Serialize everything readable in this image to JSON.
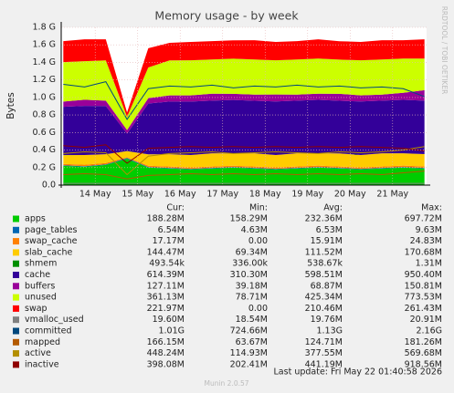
{
  "chart_data": {
    "type": "area",
    "title": "Memory usage - by week",
    "y_label": "Bytes",
    "side_text": "RRDTOOL / TOBI OETIKER",
    "footer": "Last update: Fri May 22 01:40:58 2026",
    "version": "Munin 2.0.57",
    "xlim": [
      13.2,
      21.8
    ],
    "xticks": [
      {
        "value": 14,
        "label": "14 May"
      },
      {
        "value": 15,
        "label": "15 May"
      },
      {
        "value": 16,
        "label": "16 May"
      },
      {
        "value": 17,
        "label": "17 May"
      },
      {
        "value": 18,
        "label": "18 May"
      },
      {
        "value": 19,
        "label": "19 May"
      },
      {
        "value": 20,
        "label": "20 May"
      },
      {
        "value": 21,
        "label": "21 May"
      }
    ],
    "ylim": [
      0,
      1.8
    ],
    "yticks": [
      {
        "value": 0,
        "label": "0.0"
      },
      {
        "value": 0.2,
        "label": "0.2 G"
      },
      {
        "value": 0.4,
        "label": "0.4 G"
      },
      {
        "value": 0.6,
        "label": "0.6 G"
      },
      {
        "value": 0.8,
        "label": "0.8 G"
      },
      {
        "value": 1.0,
        "label": "1.0 G"
      },
      {
        "value": 1.2,
        "label": "1.2 G"
      },
      {
        "value": 1.4,
        "label": "1.4 G"
      },
      {
        "value": 1.6,
        "label": "1.6 G"
      },
      {
        "value": 1.8,
        "label": "1.8 G"
      }
    ],
    "grid": true,
    "x": [
      13.25,
      13.75,
      14.25,
      14.75,
      15.25,
      15.75,
      16.25,
      16.75,
      17.25,
      17.75,
      18.25,
      18.75,
      19.25,
      19.75,
      20.25,
      20.75,
      21.25,
      21.75
    ],
    "columns": [
      "Cur:",
      "Min:",
      "Avg:",
      "Max:"
    ],
    "series": [
      {
        "name": "apps",
        "color": "#00cc00",
        "style": "area",
        "cur": "188.28M",
        "min": "158.29M",
        "avg": "232.36M",
        "max": "697.72M",
        "values": [
          0.22,
          0.21,
          0.23,
          0.3,
          0.2,
          0.19,
          0.18,
          0.19,
          0.2,
          0.19,
          0.18,
          0.19,
          0.2,
          0.19,
          0.18,
          0.19,
          0.2,
          0.19
        ]
      },
      {
        "name": "page_tables",
        "color": "#0066b3",
        "style": "area",
        "cur": "6.54M",
        "min": "4.63M",
        "avg": "6.53M",
        "max": "9.63M",
        "values": [
          0.0065,
          0.0064,
          0.0066,
          0.009,
          0.0063,
          0.0065,
          0.0064,
          0.0066,
          0.0065,
          0.0064,
          0.0065,
          0.0066,
          0.0065,
          0.0064,
          0.0065,
          0.0066,
          0.0065,
          0.0065
        ]
      },
      {
        "name": "swap_cache",
        "color": "#ff8000",
        "style": "area",
        "cur": "17.17M",
        "min": "0.00",
        "avg": "15.91M",
        "max": "24.83M",
        "values": [
          0.016,
          0.017,
          0.016,
          0.008,
          0.015,
          0.016,
          0.017,
          0.016,
          0.015,
          0.016,
          0.017,
          0.016,
          0.016,
          0.015,
          0.017,
          0.016,
          0.016,
          0.017
        ]
      },
      {
        "name": "slab_cache",
        "color": "#ffcc00",
        "style": "area",
        "cur": "144.47M",
        "min": "69.34M",
        "avg": "111.52M",
        "max": "170.68M",
        "values": [
          0.1,
          0.11,
          0.1,
          0.07,
          0.13,
          0.14,
          0.14,
          0.15,
          0.14,
          0.15,
          0.14,
          0.15,
          0.14,
          0.15,
          0.14,
          0.15,
          0.14,
          0.14
        ]
      },
      {
        "name": "shmem",
        "color": "#008f00",
        "style": "area",
        "cur": "493.54k",
        "min": "336.00k",
        "avg": "538.67k",
        "max": "1.31M",
        "values": [
          0.0005,
          0.0005,
          0.0005,
          0.0013,
          0.0005,
          0.0005,
          0.0005,
          0.0005,
          0.0005,
          0.0005,
          0.0005,
          0.0005,
          0.0005,
          0.0005,
          0.0005,
          0.0005,
          0.0005,
          0.0005
        ]
      },
      {
        "name": "cache",
        "color": "#330099",
        "style": "area",
        "cur": "614.39M",
        "min": "310.30M",
        "avg": "598.51M",
        "max": "950.40M",
        "values": [
          0.55,
          0.56,
          0.55,
          0.2,
          0.58,
          0.6,
          0.61,
          0.6,
          0.61,
          0.6,
          0.61,
          0.6,
          0.61,
          0.6,
          0.61,
          0.6,
          0.61,
          0.61
        ]
      },
      {
        "name": "buffers",
        "color": "#990099",
        "style": "area",
        "cur": "127.11M",
        "min": "39.18M",
        "avg": "68.87M",
        "max": "150.81M",
        "values": [
          0.06,
          0.07,
          0.06,
          0.04,
          0.06,
          0.07,
          0.07,
          0.08,
          0.07,
          0.07,
          0.08,
          0.07,
          0.07,
          0.08,
          0.07,
          0.07,
          0.08,
          0.12
        ]
      },
      {
        "name": "unused",
        "color": "#ccff00",
        "style": "area",
        "cur": "361.13M",
        "min": "78.71M",
        "avg": "425.34M",
        "max": "773.53M",
        "values": [
          0.45,
          0.44,
          0.46,
          0.15,
          0.35,
          0.4,
          0.4,
          0.39,
          0.4,
          0.4,
          0.39,
          0.4,
          0.4,
          0.39,
          0.4,
          0.4,
          0.39,
          0.36
        ]
      },
      {
        "name": "swap",
        "color": "#ff0000",
        "style": "area",
        "cur": "221.97M",
        "min": "0.00",
        "avg": "210.46M",
        "max": "261.43M",
        "values": [
          0.24,
          0.25,
          0.24,
          0.05,
          0.22,
          0.2,
          0.21,
          0.21,
          0.21,
          0.22,
          0.21,
          0.21,
          0.22,
          0.21,
          0.21,
          0.22,
          0.21,
          0.22
        ]
      },
      {
        "name": "vmalloc_used",
        "color": "#808080",
        "style": "line",
        "cur": "19.60M",
        "min": "18.54M",
        "avg": "19.76M",
        "max": "20.91M",
        "values": [
          0.019,
          0.02,
          0.019,
          0.019,
          0.02,
          0.019,
          0.02,
          0.019,
          0.02,
          0.019,
          0.02,
          0.019,
          0.02,
          0.019,
          0.02,
          0.019,
          0.02,
          0.019
        ]
      },
      {
        "name": "committed",
        "color": "#00487d",
        "style": "line",
        "cur": "1.01G",
        "min": "724.66M",
        "avg": "1.13G",
        "max": "2.16G",
        "values": [
          1.15,
          1.12,
          1.18,
          0.75,
          1.1,
          1.13,
          1.12,
          1.14,
          1.11,
          1.13,
          1.12,
          1.14,
          1.12,
          1.13,
          1.11,
          1.12,
          1.1,
          1.01
        ]
      },
      {
        "name": "mapped",
        "color": "#b35a00",
        "style": "line",
        "cur": "166.15M",
        "min": "63.67M",
        "avg": "124.71M",
        "max": "181.26M",
        "values": [
          0.12,
          0.13,
          0.12,
          0.07,
          0.11,
          0.12,
          0.13,
          0.12,
          0.13,
          0.12,
          0.13,
          0.12,
          0.13,
          0.12,
          0.13,
          0.12,
          0.14,
          0.16
        ]
      },
      {
        "name": "active",
        "color": "#b38f00",
        "style": "line",
        "cur": "448.24M",
        "min": "114.93M",
        "avg": "377.55M",
        "max": "569.68M",
        "values": [
          0.36,
          0.38,
          0.37,
          0.12,
          0.33,
          0.36,
          0.37,
          0.38,
          0.36,
          0.37,
          0.38,
          0.37,
          0.36,
          0.38,
          0.37,
          0.38,
          0.4,
          0.44
        ]
      },
      {
        "name": "inactive",
        "color": "#8f0000",
        "style": "line",
        "cur": "398.08M",
        "min": "202.41M",
        "avg": "441.19M",
        "max": "918.56M",
        "values": [
          0.45,
          0.43,
          0.46,
          0.25,
          0.42,
          0.43,
          0.44,
          0.43,
          0.44,
          0.43,
          0.44,
          0.43,
          0.44,
          0.43,
          0.44,
          0.43,
          0.42,
          0.39
        ]
      }
    ]
  }
}
